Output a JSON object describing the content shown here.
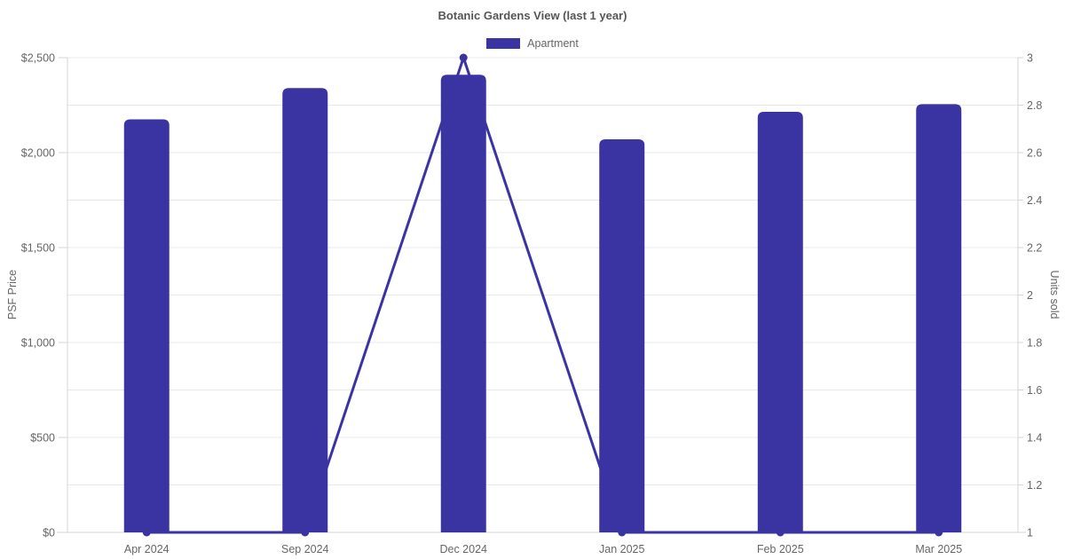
{
  "chart": {
    "title": "Botanic Gardens View (last 1 year)",
    "legend": [
      {
        "label": "Apartment"
      }
    ]
  },
  "chart_data": {
    "type": "bar+line",
    "title": "Botanic Gardens View (last 1 year)",
    "categories": [
      "Apr 2024",
      "Sep 2024",
      "Dec 2024",
      "Jan 2025",
      "Feb 2025",
      "Mar 2025"
    ],
    "series": [
      {
        "name": "Apartment",
        "type": "bar",
        "axis": "left",
        "values": [
          2175,
          2340,
          2410,
          2070,
          2215,
          2255
        ]
      },
      {
        "name": "Apartment",
        "type": "line",
        "axis": "right",
        "values": [
          1,
          1,
          3,
          1,
          1,
          1
        ]
      }
    ],
    "xlabel": "",
    "ylabel": "PSF Price",
    "y2label": "Units sold",
    "ylim": [
      0,
      2500
    ],
    "y2lim": [
      1,
      3
    ],
    "yticks": {
      "values": [
        0,
        500,
        1000,
        1500,
        2000,
        2500
      ],
      "labels": [
        "$0",
        "$500",
        "$1,000",
        "$1,500",
        "$2,000",
        "$2,500"
      ]
    },
    "y2ticks": {
      "values": [
        1,
        1.2,
        1.4,
        1.6,
        1.8,
        2,
        2.2,
        2.4,
        2.6,
        2.8,
        3
      ],
      "labels": [
        "1",
        "1.2",
        "1.4",
        "1.6",
        "1.8",
        "2",
        "2.2",
        "2.4",
        "2.6",
        "2.8",
        "3"
      ]
    },
    "grid": true,
    "legend_position": "top",
    "colors": {
      "bar": "#3a34a3",
      "line": "#3a34a3",
      "point": "#3a34a3",
      "grid": "#e8e8e8",
      "axis_border": "#d4d4d4",
      "tick_text": "#666666",
      "title_text": "#555555"
    }
  }
}
